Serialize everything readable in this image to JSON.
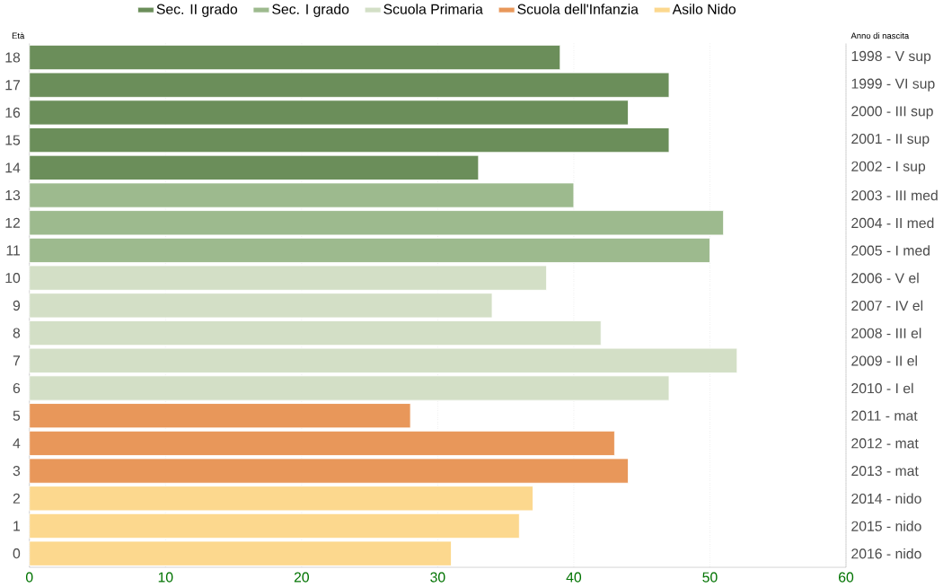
{
  "chart_data": {
    "type": "bar",
    "orientation": "horizontal",
    "ylabel": "Età",
    "y2label": "Anno di nascita",
    "categories": [
      "18",
      "17",
      "16",
      "15",
      "14",
      "13",
      "12",
      "11",
      "10",
      "9",
      "8",
      "7",
      "6",
      "5",
      "4",
      "3",
      "2",
      "1",
      "0"
    ],
    "y2_categories": [
      "1998 - V sup",
      "1999 - VI sup",
      "2000 - III sup",
      "2001 - II sup",
      "2002 - I sup",
      "2003 - III med",
      "2004 - II med",
      "2005 - I med",
      "2006 - V el",
      "2007 - IV el",
      "2008 - III el",
      "2009 - II el",
      "2010 - I el",
      "2011 - mat",
      "2012 - mat",
      "2013 - mat",
      "2014 - nido",
      "2015 - nido",
      "2016 - nido"
    ],
    "series": [
      {
        "name": "Sec. II grado",
        "color": "#6b8e5a",
        "values": [
          39,
          47,
          44,
          47,
          33,
          null,
          null,
          null,
          null,
          null,
          null,
          null,
          null,
          null,
          null,
          null,
          null,
          null,
          null
        ]
      },
      {
        "name": "Sec. I grado",
        "color": "#9dba8e",
        "values": [
          null,
          null,
          null,
          null,
          null,
          40,
          51,
          50,
          null,
          null,
          null,
          null,
          null,
          null,
          null,
          null,
          null,
          null,
          null
        ]
      },
      {
        "name": "Scuola Primaria",
        "color": "#d3dfc6",
        "values": [
          null,
          null,
          null,
          null,
          null,
          null,
          null,
          null,
          38,
          34,
          42,
          52,
          47,
          null,
          null,
          null,
          null,
          null,
          null
        ]
      },
      {
        "name": "Scuola dell'Infanzia",
        "color": "#e8975a",
        "values": [
          null,
          null,
          null,
          null,
          null,
          null,
          null,
          null,
          null,
          null,
          null,
          null,
          null,
          28,
          43,
          44,
          null,
          null,
          null
        ]
      },
      {
        "name": "Asilo Nido",
        "color": "#fcd88e",
        "values": [
          null,
          null,
          null,
          null,
          null,
          null,
          null,
          null,
          null,
          null,
          null,
          null,
          null,
          null,
          null,
          null,
          37,
          36,
          31
        ]
      }
    ],
    "xlim": [
      0,
      60
    ],
    "xticks": [
      0,
      10,
      20,
      30,
      40,
      50,
      60
    ],
    "grid": "x",
    "legend": "top"
  }
}
